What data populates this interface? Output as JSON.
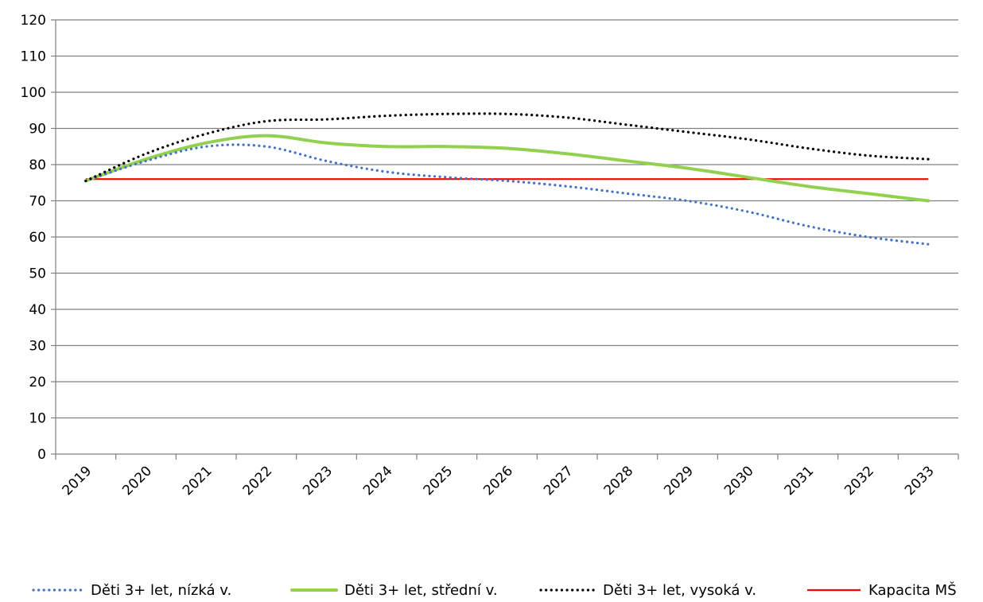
{
  "chart_data": {
    "type": "line",
    "title": "",
    "xlabel": "",
    "ylabel": "",
    "categories": [
      "2019",
      "2020",
      "2021",
      "2022",
      "2023",
      "2024",
      "2025",
      "2026",
      "2027",
      "2028",
      "2029",
      "2030",
      "2031",
      "2032",
      "2033"
    ],
    "y_ticks": [
      "0",
      "10",
      "20",
      "30",
      "40",
      "50",
      "60",
      "70",
      "80",
      "90",
      "100",
      "110",
      "120"
    ],
    "ylim": [
      0,
      120
    ],
    "grid": "horizontal",
    "legend_position": "bottom",
    "series": [
      {
        "name": "Děti 3+ let, nízká v.",
        "values": [
          75.5,
          81,
          85,
          85,
          81,
          78,
          76.5,
          75.5,
          74,
          72,
          70,
          67,
          63,
          60,
          58
        ],
        "color": "#4472c4",
        "style": "dotted"
      },
      {
        "name": "Děti 3+ let, střední v.",
        "values": [
          75.5,
          81.5,
          86,
          88,
          86,
          85,
          85,
          84.5,
          83,
          81,
          79,
          76.5,
          74,
          72,
          70
        ],
        "color": "#92d050",
        "style": "solid-thick"
      },
      {
        "name": "Děti 3+ let, vysoká v.",
        "values": [
          75.5,
          83,
          88.5,
          92,
          92.5,
          93.5,
          94,
          94,
          93,
          91,
          89,
          87,
          84.5,
          82.5,
          81.5
        ],
        "color": "#000000",
        "style": "dotted"
      },
      {
        "name": "Kapacita MŠ",
        "values": [
          76,
          76,
          76,
          76,
          76,
          76,
          76,
          76,
          76,
          76,
          76,
          76,
          76,
          76,
          76
        ],
        "color": "#ff0000",
        "style": "solid"
      }
    ]
  }
}
